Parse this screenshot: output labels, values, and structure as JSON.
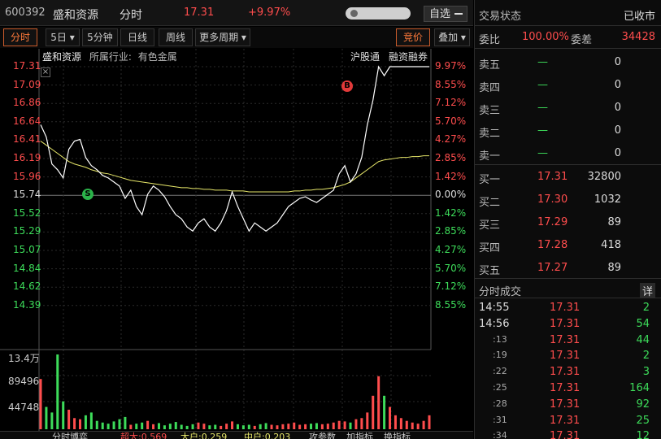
{
  "header": {
    "code": "600392",
    "name": "盛和资源",
    "mode": "分时",
    "price": "17.31",
    "change_pct": "+9.97%",
    "watch_label": "自选"
  },
  "tabs": [
    {
      "label": "分时",
      "active": true
    },
    {
      "label": "5日",
      "dropdown": true
    },
    {
      "label": "5分钟"
    },
    {
      "label": "日线"
    },
    {
      "label": "周线"
    },
    {
      "label": "更多周期",
      "dropdown": true
    }
  ],
  "right_tabs": [
    {
      "label": "竞价",
      "active": true
    },
    {
      "label": "叠加",
      "dropdown": true
    }
  ],
  "chart_info": {
    "name": "盛和资源",
    "industry_label": "所属行业:",
    "industry": "有色金属",
    "tag1": "沪股通",
    "tag2": "融资融券",
    "marker_s": "S",
    "marker_b": "B"
  },
  "chart_data": {
    "type": "line",
    "series": [
      {
        "values": [
          16.6,
          16.45,
          16.12,
          16.05,
          15.95,
          16.3,
          16.4,
          16.42,
          16.2,
          16.1,
          16.05,
          15.98,
          15.95,
          15.9,
          15.85,
          15.7,
          15.8,
          15.6,
          15.5,
          15.75,
          15.85,
          15.8,
          15.72,
          15.6,
          15.5,
          15.45,
          15.35,
          15.3,
          15.4,
          15.45,
          15.35,
          15.3,
          15.4,
          15.55,
          15.78,
          15.6,
          15.45,
          15.3,
          15.4,
          15.35,
          15.3,
          15.35,
          15.4,
          15.5,
          15.6,
          15.65,
          15.7,
          15.72,
          15.68,
          15.65,
          15.7,
          15.75,
          15.8,
          16.0,
          16.1,
          15.9,
          16.0,
          16.2,
          16.6,
          16.9,
          17.31,
          17.2,
          17.31,
          17.31,
          17.31,
          17.31,
          17.31,
          17.31,
          17.31,
          17.31
        ]
      },
      {
        "values": [
          16.4,
          16.35,
          16.3,
          16.25,
          16.2,
          16.15,
          16.12,
          16.1,
          16.08,
          16.05,
          16.03,
          16.01,
          16.0,
          15.98,
          15.96,
          15.94,
          15.92,
          15.91,
          15.9,
          15.89,
          15.88,
          15.87,
          15.86,
          15.85,
          15.84,
          15.83,
          15.83,
          15.82,
          15.82,
          15.81,
          15.81,
          15.8,
          15.8,
          15.8,
          15.79,
          15.79,
          15.79,
          15.78,
          15.78,
          15.78,
          15.78,
          15.78,
          15.78,
          15.78,
          15.78,
          15.79,
          15.79,
          15.8,
          15.8,
          15.81,
          15.81,
          15.82,
          15.83,
          15.85,
          15.87,
          15.9,
          15.95,
          16.0,
          16.05,
          16.1,
          16.15,
          16.17,
          16.18,
          16.19,
          16.2,
          16.2,
          16.21,
          16.21,
          16.22,
          16.22
        ]
      }
    ],
    "volume": [
      90,
      40,
      30,
      134,
      50,
      35,
      20,
      18,
      25,
      30,
      15,
      12,
      10,
      14,
      18,
      22,
      8,
      10,
      12,
      15,
      9,
      11,
      7,
      10,
      13,
      8,
      6,
      9,
      12,
      10,
      7,
      8,
      6,
      10,
      14,
      9,
      7,
      8,
      6,
      9,
      11,
      8,
      7,
      9,
      10,
      12,
      8,
      9,
      10,
      11,
      9,
      10,
      12,
      15,
      14,
      12,
      18,
      20,
      30,
      60,
      95,
      60,
      40,
      25,
      20,
      15,
      12,
      10,
      15,
      25
    ],
    "y_ticks": [
      "17.31",
      "17.09",
      "16.86",
      "16.64",
      "16.41",
      "16.19",
      "15.96",
      "15.74",
      "15.52",
      "15.29",
      "15.07",
      "14.84",
      "14.62",
      "14.39"
    ],
    "pct_ticks": [
      "9.97%",
      "8.55%",
      "7.12%",
      "5.70%",
      "4.27%",
      "2.85%",
      "1.42%",
      "0.00%",
      "1.42%",
      "2.85%",
      "4.27%",
      "5.70%",
      "7.12%",
      "8.55%"
    ],
    "vol_ticks": [
      "13.4万",
      "89496",
      "44748"
    ],
    "ylim": [
      14.2,
      17.31
    ]
  },
  "bottom_bar": {
    "items": [
      "分时博弈",
      "超大:0.569",
      "大户:0.259",
      "中户:0.203",
      "攻参数",
      "加指标",
      "换指标"
    ]
  },
  "book": {
    "title": "交易状态",
    "status": "已收市",
    "weibi_label": "委比",
    "weibi_value": "100.00%",
    "weicha_label": "委差",
    "weicha_value": "34428",
    "sells": [
      {
        "label": "卖五",
        "price": "—",
        "vol": "0"
      },
      {
        "label": "卖四",
        "price": "—",
        "vol": "0"
      },
      {
        "label": "卖三",
        "price": "—",
        "vol": "0"
      },
      {
        "label": "卖二",
        "price": "—",
        "vol": "0"
      },
      {
        "label": "卖一",
        "price": "—",
        "vol": "0"
      }
    ],
    "buys": [
      {
        "label": "买一",
        "price": "17.31",
        "vol": "32800"
      },
      {
        "label": "买二",
        "price": "17.30",
        "vol": "1032"
      },
      {
        "label": "买三",
        "price": "17.29",
        "vol": "89"
      },
      {
        "label": "买四",
        "price": "17.28",
        "vol": "418"
      },
      {
        "label": "买五",
        "price": "17.27",
        "vol": "89"
      }
    ]
  },
  "trades": {
    "title": "分时成交",
    "detail_label": "详",
    "rows": [
      {
        "time": "14:55",
        "price": "17.31",
        "vol": "2",
        "color": "green"
      },
      {
        "time": "14:56",
        "price": "17.31",
        "vol": "54",
        "color": "green"
      },
      {
        "time": ":13",
        "price": "17.31",
        "vol": "44",
        "color": "green"
      },
      {
        "time": ":19",
        "price": "17.31",
        "vol": "2",
        "color": "green"
      },
      {
        "time": ":22",
        "price": "17.31",
        "vol": "3",
        "color": "green"
      },
      {
        "time": ":25",
        "price": "17.31",
        "vol": "164",
        "color": "green"
      },
      {
        "time": ":28",
        "price": "17.31",
        "vol": "92",
        "color": "green"
      },
      {
        "time": ":31",
        "price": "17.31",
        "vol": "25",
        "color": "green"
      },
      {
        "time": ":34",
        "price": "17.31",
        "vol": "12",
        "color": "green"
      }
    ]
  },
  "colors": {
    "up": "#ff4d4d",
    "down": "#3ddc5a",
    "price_line": "#ffffff",
    "avg_line": "#e8e86a"
  }
}
